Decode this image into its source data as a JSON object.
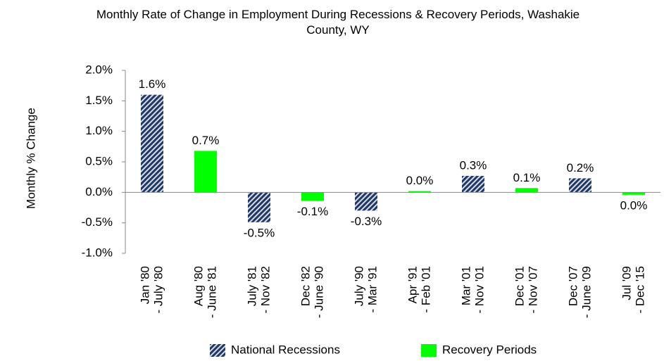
{
  "chart_data": {
    "type": "bar",
    "title": "Monthly Rate of Change in Employment During Recessions & Recovery Periods, Washakie County, WY",
    "y_label": "Monthly % Change",
    "categories": [
      [
        "Jan '80",
        "- July '80"
      ],
      [
        "Aug '80",
        "- June '81"
      ],
      [
        "July '81",
        "- Nov '82"
      ],
      [
        "Dec '82",
        "- June '90"
      ],
      [
        "July '90",
        "- Mar '91"
      ],
      [
        "Apr '91",
        "- Feb '01"
      ],
      [
        "Mar '01",
        "- Nov '01"
      ],
      [
        "Dec '01",
        "- Nov '07"
      ],
      [
        "Dec '07",
        "- June '09"
      ],
      [
        "Jul '09",
        "- Dec '15"
      ]
    ],
    "series": [
      {
        "name": "National Recessions",
        "color": "#1f3864",
        "pattern": "hatch",
        "values": [
          1.6,
          null,
          -0.49,
          null,
          -0.3,
          null,
          0.27,
          null,
          0.23,
          null
        ],
        "value_labels": [
          "1.6%",
          null,
          "-0.5%",
          null,
          "-0.3%",
          null,
          "0.3%",
          null,
          "0.2%",
          null
        ]
      },
      {
        "name": "Recovery Periods",
        "color": "#00ff00",
        "values": [
          null,
          0.68,
          null,
          -0.14,
          null,
          0.02,
          null,
          0.07,
          null,
          -0.04
        ],
        "value_labels": [
          null,
          "0.7%",
          null,
          "-0.1%",
          null,
          "0.0%",
          null,
          "0.1%",
          null,
          "0.0%"
        ]
      }
    ],
    "ylim": [
      -1.0,
      2.0
    ],
    "yticks": [
      {
        "value": -1.0,
        "label": "-1.0%"
      },
      {
        "value": -0.5,
        "label": "-0.5%"
      },
      {
        "value": 0.0,
        "label": "0.0%"
      },
      {
        "value": 0.5,
        "label": "0.5%"
      },
      {
        "value": 1.0,
        "label": "1.0%"
      },
      {
        "value": 1.5,
        "label": "1.5%"
      },
      {
        "value": 2.0,
        "label": "2.0%"
      }
    ],
    "legend": "bottom"
  }
}
